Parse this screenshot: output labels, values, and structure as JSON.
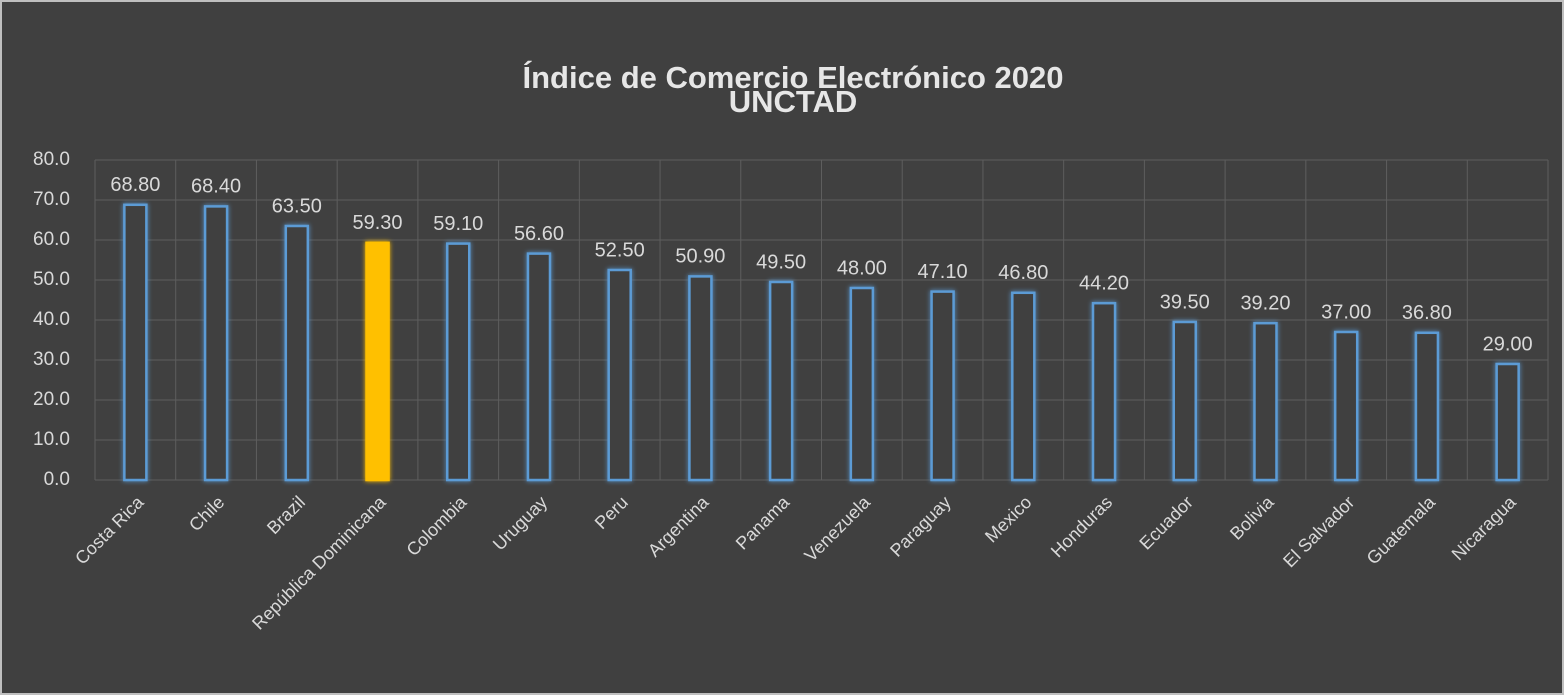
{
  "chart_data": {
    "type": "bar",
    "title": "Índice de Comercio Electrónico 2020",
    "subtitle": "UNCTAD",
    "categories": [
      "Costa Rica",
      "Chile",
      "Brazil",
      "República Dominicana",
      "Colombia",
      "Uruguay",
      "Peru",
      "Argentina",
      "Panama",
      "Venezuela",
      "Paraguay",
      "Mexico",
      "Honduras",
      "Ecuador",
      "Bolivia",
      "El Salvador",
      "Guatemala",
      "Nicaragua"
    ],
    "values": [
      68.8,
      68.4,
      63.5,
      59.3,
      59.1,
      56.6,
      52.5,
      50.9,
      49.5,
      48.0,
      47.1,
      46.8,
      44.2,
      39.5,
      39.2,
      37.0,
      36.8,
      29.0
    ],
    "value_labels": [
      "68.80",
      "68.40",
      "63.50",
      "59.30",
      "59.10",
      "56.60",
      "52.50",
      "50.90",
      "49.50",
      "48.00",
      "47.10",
      "46.80",
      "44.20",
      "39.50",
      "39.20",
      "37.00",
      "36.80",
      "29.00"
    ],
    "color": "#5b9bd5",
    "colors": [
      "#5b9bd5",
      "#5b9bd5",
      "#5b9bd5",
      "#ffc000",
      "#5b9bd5",
      "#5b9bd5",
      "#5b9bd5",
      "#5b9bd5",
      "#5b9bd5",
      "#5b9bd5",
      "#5b9bd5",
      "#5b9bd5",
      "#5b9bd5",
      "#5b9bd5",
      "#5b9bd5",
      "#5b9bd5",
      "#5b9bd5",
      "#5b9bd5"
    ],
    "ylim": [
      0,
      80
    ],
    "yticks": [
      {
        "value": 0,
        "label": "0.0"
      },
      {
        "value": 10,
        "label": "10.0"
      },
      {
        "value": 20,
        "label": "20.0"
      },
      {
        "value": 30,
        "label": "30.0"
      },
      {
        "value": 40,
        "label": "40.0"
      },
      {
        "value": 50,
        "label": "50.0"
      },
      {
        "value": 60,
        "label": "60.0"
      },
      {
        "value": 70,
        "label": "70.0"
      },
      {
        "value": 80,
        "label": "80.0"
      }
    ],
    "grid": true
  }
}
